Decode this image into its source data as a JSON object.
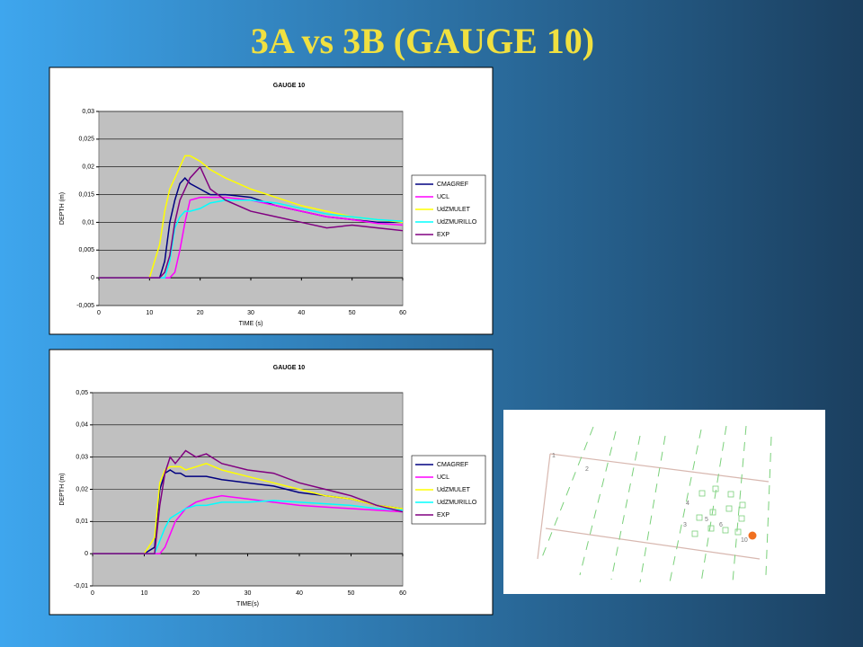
{
  "title": "3A vs 3B   (GAUGE 10)",
  "chart_data": [
    {
      "type": "line",
      "title": "GAUGE 10",
      "x_label": "TIME (s)",
      "y_label": "DEPTH (m)",
      "x": [
        0,
        5,
        10,
        12,
        13,
        14,
        15,
        16,
        17,
        18,
        20,
        22,
        25,
        30,
        35,
        40,
        45,
        50,
        55,
        60
      ],
      "xlim": [
        0,
        60
      ],
      "xticks": [
        0,
        10,
        20,
        30,
        40,
        50,
        60
      ],
      "ylim": [
        -0.005,
        0.03
      ],
      "yticks": [
        {
          "value": -0.005,
          "label": "-0,005"
        },
        0,
        {
          "value": 0.005,
          "label": "0,005"
        },
        {
          "value": 0.01,
          "label": "0,01"
        },
        {
          "value": 0.015,
          "label": "0,015"
        },
        {
          "value": 0.02,
          "label": "0,02"
        },
        {
          "value": 0.025,
          "label": "0,025"
        },
        {
          "value": 0.03,
          "label": "0,03"
        }
      ],
      "grid": true,
      "series": [
        {
          "name": "CMAGREF",
          "color": "#000080",
          "values": [
            0,
            0,
            0,
            0,
            0.003,
            0.01,
            0.014,
            0.017,
            0.018,
            0.017,
            0.016,
            0.015,
            0.015,
            0.0145,
            0.013,
            0.012,
            0.011,
            0.0105,
            0.01,
            0.01
          ]
        },
        {
          "name": "UCL",
          "color": "#ff00ff",
          "values": [
            0,
            0,
            0,
            0,
            0,
            0,
            0.001,
            0.005,
            0.01,
            0.014,
            0.0145,
            0.0145,
            0.0145,
            0.014,
            0.013,
            0.012,
            0.011,
            0.0105,
            0.0098,
            0.0095
          ]
        },
        {
          "name": "UdZMULET",
          "color": "#ffff00",
          "values": [
            0,
            0,
            0,
            0.006,
            0.012,
            0.016,
            0.018,
            0.02,
            0.022,
            0.022,
            0.021,
            0.0195,
            0.018,
            0.016,
            0.0145,
            0.013,
            0.012,
            0.011,
            0.0105,
            0.01
          ]
        },
        {
          "name": "UdZMURILLO",
          "color": "#00ffff",
          "values": [
            0,
            0,
            0,
            0,
            0,
            0.003,
            0.009,
            0.011,
            0.012,
            0.012,
            0.0125,
            0.0135,
            0.014,
            0.014,
            0.0135,
            0.0125,
            0.0115,
            0.011,
            0.0105,
            0.0102
          ]
        },
        {
          "name": "EXP",
          "color": "#800080",
          "values": [
            0,
            0,
            0,
            0,
            0.001,
            0.004,
            0.01,
            0.014,
            0.016,
            0.018,
            0.02,
            0.016,
            0.014,
            0.012,
            0.011,
            0.01,
            0.009,
            0.0095,
            0.009,
            0.0085
          ]
        }
      ]
    },
    {
      "type": "line",
      "title": "GAUGE 10",
      "x_label": "TIME(s)",
      "y_label": "DEPTH (m)",
      "x": [
        0,
        5,
        10,
        12,
        13,
        14,
        15,
        16,
        17,
        18,
        20,
        22,
        25,
        30,
        35,
        40,
        45,
        50,
        55,
        60
      ],
      "xlim": [
        0,
        60
      ],
      "xticks": [
        0,
        10,
        20,
        30,
        40,
        50,
        60
      ],
      "ylim": [
        -0.01,
        0.05
      ],
      "yticks": [
        {
          "value": -0.01,
          "label": "-0,01"
        },
        0,
        {
          "value": 0.01,
          "label": "0,01"
        },
        {
          "value": 0.02,
          "label": "0,02"
        },
        {
          "value": 0.03,
          "label": "0,03"
        },
        {
          "value": 0.04,
          "label": "0,04"
        },
        {
          "value": 0.05,
          "label": "0,05"
        }
      ],
      "grid": true,
      "series": [
        {
          "name": "CMAGREF",
          "color": "#000080",
          "values": [
            0,
            0,
            0,
            0.002,
            0.02,
            0.025,
            0.026,
            0.025,
            0.025,
            0.024,
            0.024,
            0.024,
            0.023,
            0.022,
            0.021,
            0.019,
            0.018,
            0.017,
            0.015,
            0.014
          ]
        },
        {
          "name": "UCL",
          "color": "#ff00ff",
          "values": [
            0,
            0,
            0,
            0,
            0,
            0.002,
            0.006,
            0.01,
            0.012,
            0.014,
            0.016,
            0.017,
            0.018,
            0.017,
            0.016,
            0.015,
            0.0145,
            0.014,
            0.0135,
            0.013
          ]
        },
        {
          "name": "UdZMULET",
          "color": "#ffff00",
          "values": [
            0,
            0,
            0,
            0.005,
            0.022,
            0.026,
            0.027,
            0.027,
            0.027,
            0.026,
            0.027,
            0.028,
            0.026,
            0.024,
            0.022,
            0.02,
            0.018,
            0.017,
            0.015,
            0.014
          ]
        },
        {
          "name": "UdZMURILLO",
          "color": "#00ffff",
          "values": [
            0,
            0,
            0,
            0,
            0.004,
            0.008,
            0.011,
            0.012,
            0.013,
            0.014,
            0.015,
            0.015,
            0.016,
            0.016,
            0.0165,
            0.016,
            0.0155,
            0.015,
            0.014,
            0.0135
          ]
        },
        {
          "name": "EXP",
          "color": "#800080",
          "values": [
            0,
            0,
            0,
            0,
            0.015,
            0.025,
            0.03,
            0.028,
            0.03,
            0.032,
            0.03,
            0.031,
            0.028,
            0.026,
            0.025,
            0.022,
            0.02,
            0.018,
            0.015,
            0.013
          ]
        }
      ]
    }
  ],
  "map": {
    "gauges": [
      "1",
      "2",
      "3",
      "4",
      "5",
      "6",
      "10"
    ]
  }
}
